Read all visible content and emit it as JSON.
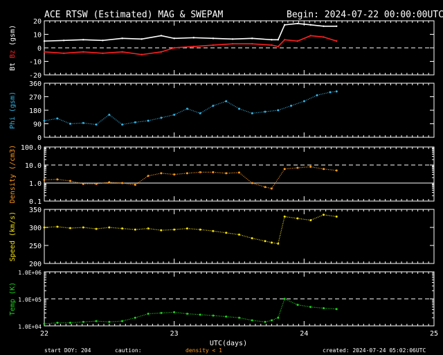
{
  "header": {
    "title": "ACE RTSW (Estimated) MAG & SWEPAM",
    "begin": "Begin: 2024-07-22 00:00:00UTC"
  },
  "footer": {
    "start_doy": "start DOY: 204",
    "caution": "caution:",
    "density_note": "density < 1",
    "created": "created: 2024-07-24 05:02:06UTC"
  },
  "colors": {
    "bt": "#ffffff",
    "bz": "#ff2020",
    "phi": "#33b5e5",
    "density": "#ff9a1a",
    "speed": "#f5e20a",
    "temp": "#1ed41e",
    "axis": "#ffffff",
    "background": "#000000"
  },
  "chart_data": [
    {
      "type": "line",
      "panel": "mag",
      "ylabel_parts": [
        "Bt",
        "Bz",
        "(gsm)"
      ],
      "ylim": [
        -20,
        20
      ],
      "yticks": [
        "20",
        "10",
        "0",
        "-10",
        "-20"
      ],
      "dashed_zero": true,
      "series": [
        {
          "name": "Bt",
          "x": [
            22.0,
            22.15,
            22.3,
            22.45,
            22.6,
            22.75,
            22.9,
            23.0,
            23.15,
            23.3,
            23.45,
            23.6,
            23.75,
            23.8,
            23.85,
            23.95,
            24.05,
            24.15,
            24.25
          ],
          "values": [
            5,
            5.5,
            6,
            5.5,
            7,
            6.5,
            9,
            7,
            7.5,
            7,
            6.5,
            7,
            6,
            6,
            17,
            18,
            17,
            16,
            16
          ]
        },
        {
          "name": "Bz",
          "x": [
            22.0,
            22.15,
            22.3,
            22.45,
            22.6,
            22.75,
            22.9,
            23.0,
            23.15,
            23.3,
            23.45,
            23.6,
            23.75,
            23.8,
            23.85,
            23.95,
            24.05,
            24.15,
            24.25
          ],
          "values": [
            -3,
            -4,
            -3,
            -4,
            -3,
            -5,
            -3,
            0,
            1,
            2,
            3,
            3,
            2,
            1,
            6,
            5,
            9,
            8,
            5
          ]
        }
      ]
    },
    {
      "type": "scatter",
      "panel": "phi",
      "ylabel": "Phi (gsm)",
      "ylim": [
        0,
        360
      ],
      "yticks": [
        "360",
        "270",
        "180",
        "90",
        "0"
      ],
      "x": [
        22.0,
        22.1,
        22.2,
        22.3,
        22.4,
        22.5,
        22.6,
        22.7,
        22.8,
        22.9,
        23.0,
        23.1,
        23.2,
        23.3,
        23.4,
        23.5,
        23.6,
        23.7,
        23.8,
        23.9,
        24.0,
        24.1,
        24.2,
        24.25
      ],
      "values": [
        110,
        125,
        90,
        95,
        85,
        150,
        85,
        100,
        110,
        130,
        150,
        190,
        160,
        210,
        240,
        190,
        160,
        170,
        180,
        210,
        240,
        280,
        300,
        305
      ]
    },
    {
      "type": "scatter",
      "panel": "density",
      "ylabel": "Density (/cm3)",
      "yscale": "log",
      "ylim": [
        0.1,
        100
      ],
      "yticks": [
        "100.0",
        "10.0",
        "1.0",
        "0.1"
      ],
      "dashed_ref": 10,
      "solid_ref": 1,
      "x": [
        22.0,
        22.1,
        22.2,
        22.3,
        22.4,
        22.5,
        22.6,
        22.7,
        22.8,
        22.9,
        23.0,
        23.1,
        23.2,
        23.3,
        23.4,
        23.5,
        23.6,
        23.7,
        23.75,
        23.85,
        23.95,
        24.05,
        24.15,
        24.25
      ],
      "values": [
        1.5,
        1.6,
        1.3,
        0.9,
        0.9,
        1.1,
        1.0,
        0.8,
        2.5,
        3.5,
        3.0,
        3.5,
        4.0,
        4.0,
        3.5,
        3.8,
        1.0,
        0.6,
        0.5,
        6.0,
        7.0,
        8.0,
        6.0,
        5.0
      ]
    },
    {
      "type": "scatter",
      "panel": "speed",
      "ylabel": "Speed (km/s)",
      "ylim": [
        200,
        350
      ],
      "yticks": [
        "350",
        "300",
        "250",
        "200"
      ],
      "x": [
        22.0,
        22.1,
        22.2,
        22.3,
        22.4,
        22.5,
        22.6,
        22.7,
        22.8,
        22.9,
        23.0,
        23.1,
        23.2,
        23.3,
        23.4,
        23.5,
        23.6,
        23.7,
        23.75,
        23.8,
        23.85,
        23.95,
        24.05,
        24.15,
        24.25
      ],
      "values": [
        300,
        302,
        298,
        300,
        296,
        300,
        297,
        294,
        297,
        292,
        294,
        297,
        294,
        290,
        285,
        280,
        270,
        262,
        258,
        255,
        330,
        325,
        320,
        335,
        330
      ]
    },
    {
      "type": "scatter",
      "panel": "temp",
      "ylabel": "Temp (K)",
      "yscale": "log",
      "ylim": [
        10000,
        1000000
      ],
      "yticks": [
        "1.0E+06",
        "1.0E+05",
        "1.0E+04"
      ],
      "dashed_ref": 100000,
      "x": [
        22.0,
        22.1,
        22.2,
        22.3,
        22.4,
        22.5,
        22.6,
        22.7,
        22.8,
        22.9,
        23.0,
        23.1,
        23.2,
        23.3,
        23.4,
        23.5,
        23.6,
        23.7,
        23.75,
        23.8,
        23.85,
        23.95,
        24.05,
        24.15,
        24.25
      ],
      "values": [
        12000,
        13000,
        13000,
        14000,
        15000,
        14000,
        15000,
        20000,
        28000,
        30000,
        32000,
        28000,
        26000,
        24000,
        22000,
        20000,
        16000,
        14000,
        16000,
        20000,
        100000,
        60000,
        50000,
        45000,
        42000
      ],
      "xlabel": "UTC(days)",
      "xticks": [
        "22",
        "23",
        "24",
        "25"
      ],
      "xlim": [
        22,
        25
      ]
    }
  ]
}
